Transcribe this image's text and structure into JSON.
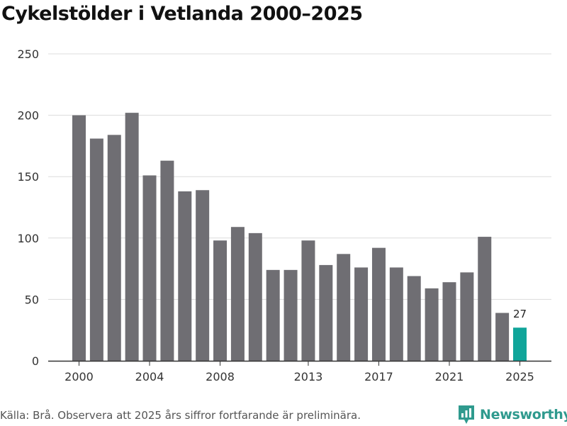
{
  "page": {
    "title": "Cykelstölder i Vetlanda 2000–2025",
    "source": "Källa: Brå. Observera att 2025 års siffror fortfarande är preliminära.",
    "brand": "Newsworthy"
  },
  "colors": {
    "bar": "#6f6e73",
    "highlight": "#10a59a",
    "grid": "#dcdcdc",
    "axis": "#333333",
    "brand": "#2f9a8e"
  },
  "chart_data": {
    "type": "bar",
    "title": "Cykelstölder i Vetlanda 2000–2025",
    "xlabel": "",
    "ylabel": "",
    "ylim": [
      0,
      250
    ],
    "y_ticks": [
      0,
      50,
      100,
      150,
      200,
      250
    ],
    "x_tick_labels": [
      "2000",
      "2004",
      "2008",
      "2013",
      "2017",
      "2021",
      "2025"
    ],
    "grid": true,
    "categories": [
      "2000",
      "2001",
      "2002",
      "2003",
      "2004",
      "2005",
      "2006",
      "2007",
      "2008",
      "2009",
      "2010",
      "2011",
      "2012",
      "2013",
      "2014",
      "2015",
      "2016",
      "2017",
      "2018",
      "2019",
      "2020",
      "2021",
      "2022",
      "2023",
      "2024",
      "2025"
    ],
    "values": [
      200,
      181,
      184,
      202,
      151,
      163,
      138,
      139,
      98,
      109,
      104,
      74,
      74,
      98,
      78,
      87,
      76,
      92,
      76,
      69,
      59,
      64,
      72,
      101,
      39,
      27
    ],
    "highlight_category": "2025",
    "data_labels": [
      {
        "category": "2025",
        "text": "27"
      }
    ]
  }
}
